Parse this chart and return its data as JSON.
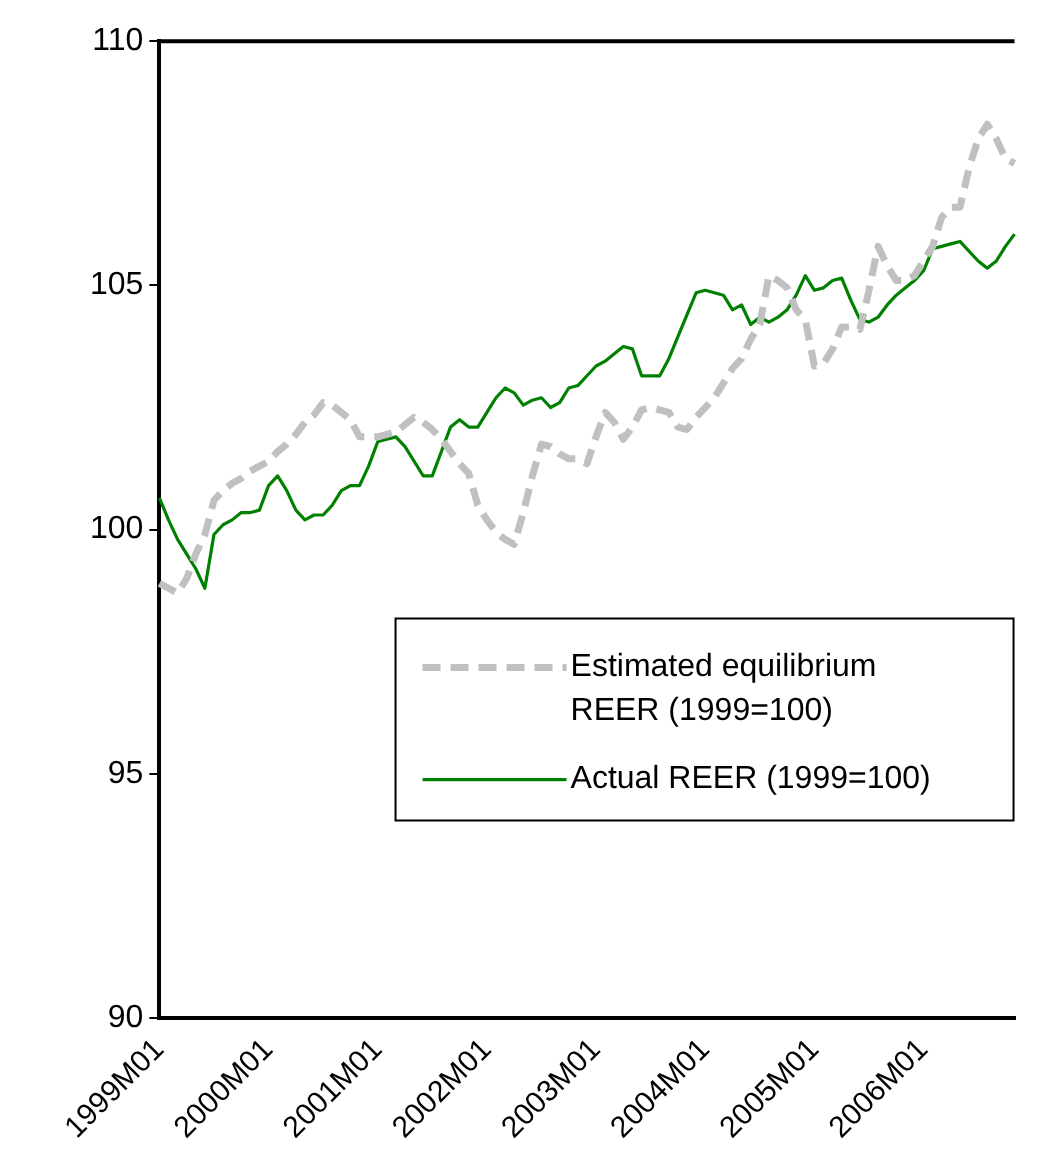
{
  "chart_data": {
    "type": "line",
    "categories": [
      "1999M01",
      null,
      null,
      null,
      null,
      null,
      null,
      null,
      null,
      null,
      null,
      null,
      "2000M01",
      null,
      null,
      null,
      null,
      null,
      null,
      null,
      null,
      null,
      null,
      null,
      "2001M01",
      null,
      null,
      null,
      null,
      null,
      null,
      null,
      null,
      null,
      null,
      null,
      "2002M01",
      null,
      null,
      null,
      null,
      null,
      null,
      null,
      null,
      null,
      null,
      null,
      "2003M01",
      null,
      null,
      null,
      null,
      null,
      null,
      null,
      null,
      null,
      null,
      null,
      "2004M01",
      null,
      null,
      null,
      null,
      null,
      null,
      null,
      null,
      null,
      null,
      null,
      "2005M01",
      null,
      null,
      null,
      null,
      null,
      null,
      null,
      null,
      null,
      null,
      null,
      "2006M01",
      null,
      null,
      null,
      null,
      null,
      null,
      null,
      null,
      null,
      null
    ],
    "series": [
      {
        "name": "Estimated equilibrium REER (1999=100)",
        "color": "#c0c0c0",
        "line_style": "dashed",
        "values": [
          98.9,
          98.8,
          98.7,
          99.0,
          99.5,
          99.9,
          100.6,
          100.8,
          100.95,
          101.05,
          101.2,
          101.3,
          101.4,
          101.6,
          101.75,
          101.95,
          102.2,
          102.35,
          102.6,
          102.55,
          102.4,
          102.25,
          101.9,
          101.9,
          101.9,
          101.95,
          102.0,
          102.15,
          102.3,
          102.2,
          102.05,
          101.85,
          101.6,
          101.35,
          101.15,
          100.5,
          100.2,
          99.95,
          99.8,
          99.7,
          100.35,
          101.1,
          101.75,
          101.7,
          101.55,
          101.45,
          101.45,
          101.35,
          101.9,
          102.4,
          102.2,
          101.85,
          102.1,
          102.45,
          102.5,
          102.45,
          102.4,
          102.1,
          102.05,
          102.3,
          102.5,
          102.7,
          103.0,
          103.3,
          103.5,
          103.9,
          104.2,
          105.2,
          105.1,
          104.95,
          104.5,
          104.3,
          103.35,
          103.4,
          103.7,
          104.15,
          104.15,
          104.1,
          104.9,
          105.8,
          105.4,
          105.1,
          105.1,
          105.2,
          105.5,
          105.8,
          106.4,
          106.6,
          106.6,
          107.4,
          108.0,
          108.3,
          108.0,
          107.6,
          107.5
        ]
      },
      {
        "name": "Actual REER (1999=100)",
        "color": "#008000",
        "line_style": "solid",
        "values": [
          100.65,
          100.2,
          99.8,
          99.5,
          99.2,
          98.8,
          99.9,
          100.1,
          100.2,
          100.35,
          100.35,
          100.4,
          100.9,
          101.1,
          100.8,
          100.4,
          100.2,
          100.3,
          100.3,
          100.5,
          100.8,
          100.9,
          100.9,
          101.3,
          101.8,
          101.85,
          101.9,
          101.7,
          101.4,
          101.1,
          101.1,
          101.6,
          102.1,
          102.25,
          102.1,
          102.1,
          102.4,
          102.7,
          102.9,
          102.8,
          102.55,
          102.65,
          102.7,
          102.5,
          102.6,
          102.9,
          102.95,
          103.15,
          103.35,
          103.45,
          103.6,
          103.75,
          103.7,
          103.15,
          103.15,
          103.15,
          103.5,
          103.95,
          104.4,
          104.85,
          104.9,
          104.85,
          104.8,
          104.5,
          104.6,
          104.2,
          104.35,
          104.25,
          104.35,
          104.5,
          104.8,
          105.2,
          104.9,
          104.95,
          105.1,
          105.15,
          104.7,
          104.3,
          104.25,
          104.35,
          104.6,
          104.8,
          104.95,
          105.1,
          105.3,
          105.75,
          105.8,
          105.85,
          105.9,
          105.7,
          105.5,
          105.35,
          105.5,
          105.8,
          106.05
        ]
      }
    ],
    "ylim": [
      90,
      110
    ],
    "yticks": [
      90,
      95,
      100,
      105,
      110
    ],
    "grid": false,
    "legend": "right",
    "marker": "none"
  }
}
